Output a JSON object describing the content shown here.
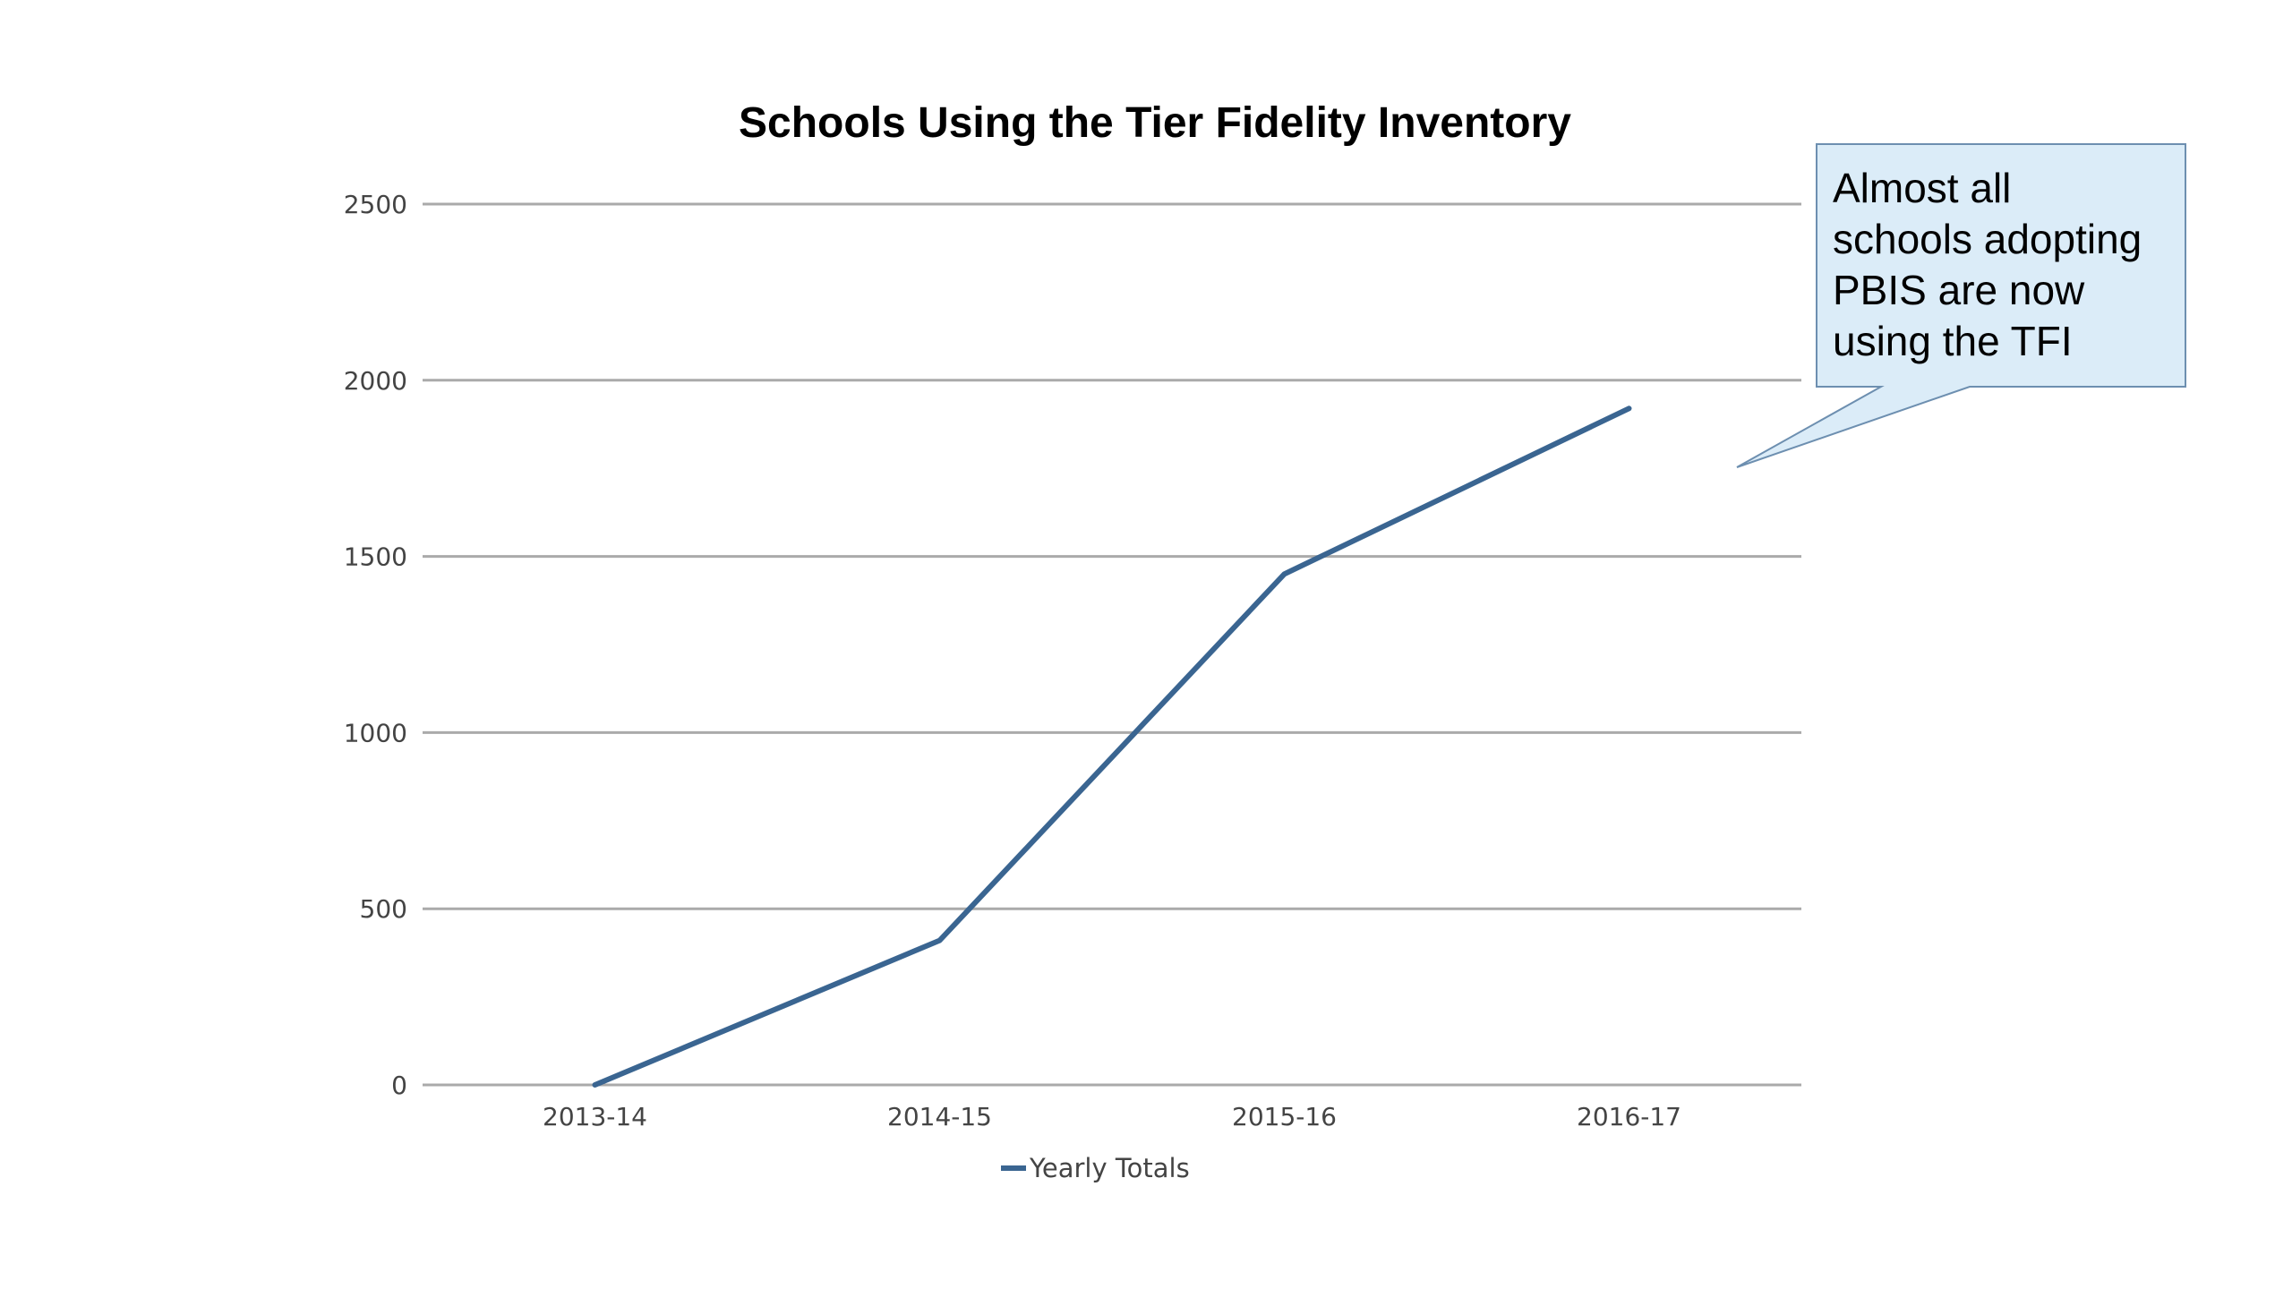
{
  "chart_data": {
    "type": "line",
    "title": "Schools Using the Tier Fidelity Inventory",
    "xlabel": "",
    "ylabel": "",
    "categories": [
      "2013-14",
      "2014-15",
      "2015-16",
      "2016-17"
    ],
    "series": [
      {
        "name": "Yearly Totals",
        "values": [
          0,
          410,
          1450,
          1920
        ],
        "color": "#3a6591"
      }
    ],
    "ylim": [
      0,
      2500
    ],
    "yticks": [
      "0",
      "500",
      "1000",
      "1500",
      "2000",
      "2500"
    ],
    "grid": true,
    "legend_position": "bottom"
  },
  "callout": {
    "lines": [
      "Almost all",
      "schools adopting",
      "PBIS are now",
      "using the TFI"
    ],
    "fill": "#dbecf8",
    "stroke": "#6d8fb0"
  },
  "colors": {
    "gridline": "#aaaaaa",
    "axis_text": "#444444"
  }
}
